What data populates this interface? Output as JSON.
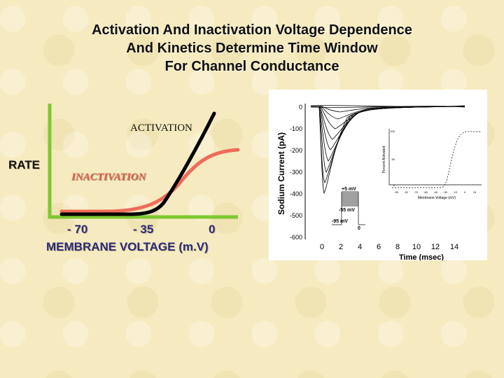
{
  "title": {
    "line1": "Activation And Inactivation Voltage Dependence",
    "line2": "And Kinetics Determine Time Window",
    "line3": "For Channel Conductance"
  },
  "schematic": {
    "y_label": "RATE",
    "activation_label": "ACTIVATION",
    "inactivation_label": "INACTIVATION",
    "x_ticks": [
      "- 70",
      "- 35",
      "0"
    ],
    "x_label": "MEMBRANE VOLTAGE (m.V)",
    "colors": {
      "axis": "#7ec832",
      "activation": "#000000",
      "inactivation": "#ef6b5a"
    }
  },
  "figure": {
    "y_label": "Sodium Current (pA)",
    "y_ticks": [
      "0",
      "-100",
      "-200",
      "-300",
      "-400",
      "-500",
      "-600"
    ],
    "x_ticks": [
      "0",
      "2",
      "4",
      "6",
      "8",
      "10",
      "12",
      "14"
    ],
    "x_label": "Time (msec)",
    "protocol": {
      "top": "+5 mV",
      "mid": "-55 mV",
      "hold": "-95 mV",
      "zero": "0"
    },
    "inset": {
      "y_label": "Percent Activated",
      "y_ticks": [
        "100",
        "50",
        "0"
      ],
      "x_ticks": [
        "-95",
        "-90",
        "-75",
        "-60",
        "-45",
        "-30",
        "-15",
        "0",
        "15"
      ],
      "x_label": "Membrane Voltage (mV)"
    }
  }
}
